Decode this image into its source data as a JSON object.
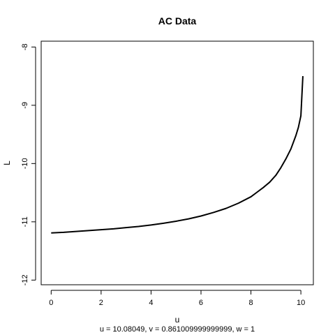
{
  "chart_data": {
    "type": "line",
    "title": "AC Data",
    "xlabel": "u",
    "ylabel": "L",
    "subtitle": "u = 10.08049, v = 0.861009999999999, w = 1",
    "xlim": [
      -0.4,
      10.5
    ],
    "ylim": [
      -12.08,
      -7.9
    ],
    "x_ticks": [
      0,
      2,
      4,
      6,
      8,
      10
    ],
    "y_ticks": [
      -12,
      -11,
      -10,
      -9,
      -8
    ],
    "grid": false,
    "legend": "none",
    "series": [
      {
        "color": "#000000",
        "x": [
          0,
          0.5,
          1,
          1.5,
          2,
          2.5,
          3,
          3.5,
          4,
          4.5,
          5,
          5.5,
          6,
          6.5,
          7,
          7.5,
          8,
          8.25,
          8.5,
          8.75,
          9,
          9.2,
          9.4,
          9.6,
          9.8,
          9.9,
          10,
          10.08
        ],
        "y": [
          -11.19,
          -11.18,
          -11.165,
          -11.15,
          -11.135,
          -11.12,
          -11.1,
          -11.08,
          -11.055,
          -11.025,
          -10.99,
          -10.95,
          -10.9,
          -10.84,
          -10.77,
          -10.68,
          -10.57,
          -10.49,
          -10.41,
          -10.32,
          -10.2,
          -10.07,
          -9.92,
          -9.75,
          -9.52,
          -9.38,
          -9.18,
          -8.5
        ]
      }
    ]
  }
}
